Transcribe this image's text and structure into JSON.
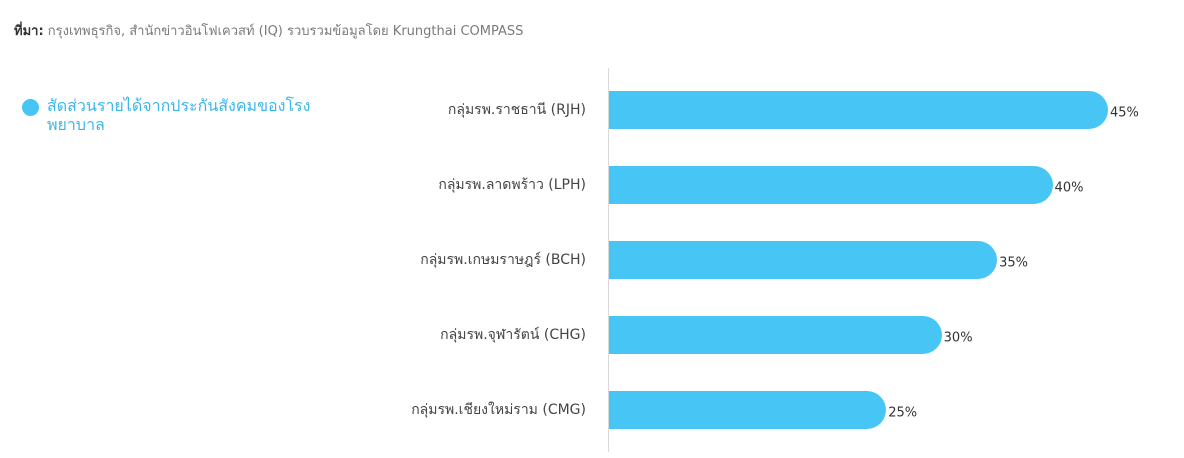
{
  "chart_data": {
    "type": "bar",
    "orientation": "horizontal",
    "source_label": "ที่มา:",
    "source": "กรุงเทพธุรกิจ, สำนักข่าวอินโฟเควสท์ (IQ) รวบรวมข้อมูลโดย Krungthai COMPASS",
    "series": [
      {
        "name": "สัดส่วนรายได้จากประกันสังคมของโรงพยาบาล",
        "color": "#47c6f5",
        "values": [
          45,
          40,
          35,
          30,
          25
        ],
        "value_labels": [
          "45%",
          "40%",
          "35%",
          "30%",
          "25%"
        ]
      }
    ],
    "categories": [
      "กลุ่มรพ.ราชธานี (RJH)",
      "กลุ่มรพ.ลาดพร้าว (LPH)",
      "กลุ่มรพ.เกษมราษฎร์ (BCH)",
      "กลุ่มรพ.จุฬารัตน์ (CHG)",
      "กลุ่มรพ.เชียงใหม่ราม (CMG)"
    ]
  }
}
